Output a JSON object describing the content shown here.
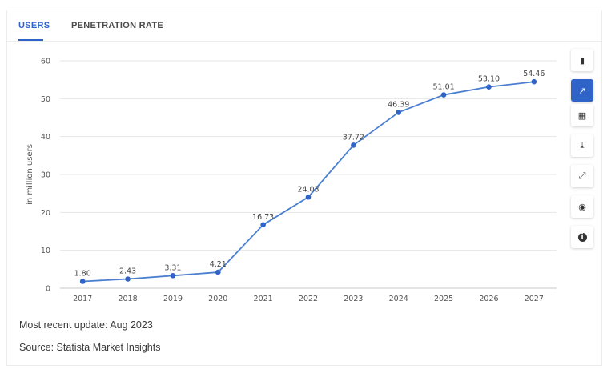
{
  "tabs": [
    {
      "label": "USERS",
      "active": true
    },
    {
      "label": "PENETRATION RATE",
      "active": false
    }
  ],
  "footer": {
    "update": "Most recent update: Aug 2023",
    "source": "Source: Statista Market Insights"
  },
  "toolbar": [
    {
      "name": "bar-chart-icon",
      "glyph": "▮",
      "active": false
    },
    {
      "name": "line-chart-icon",
      "glyph": "↗",
      "active": true
    },
    {
      "name": "table-icon",
      "glyph": "▦",
      "active": false
    },
    {
      "name": "download-icon",
      "glyph": "⤓",
      "active": false
    },
    {
      "name": "fullscreen-icon",
      "glyph": "⤢",
      "active": false
    },
    {
      "name": "hide-icon",
      "glyph": "◉",
      "active": false
    },
    {
      "name": "info-icon",
      "glyph": "i",
      "active": false
    }
  ],
  "colors": {
    "line": "#4a7fd0",
    "accent": "#2f63c7",
    "grid": "#e6e6e6"
  },
  "chart_data": {
    "type": "line",
    "title": "",
    "xlabel": "",
    "ylabel": "in million users",
    "ylim": [
      0,
      60
    ],
    "yticks": [
      0,
      10,
      20,
      30,
      40,
      50,
      60
    ],
    "grid": true,
    "categories": [
      "2017",
      "2018",
      "2019",
      "2020",
      "2021",
      "2022",
      "2023",
      "2024",
      "2025",
      "2026",
      "2027"
    ],
    "series": [
      {
        "values": [
          1.8,
          2.43,
          3.31,
          4.21,
          16.73,
          24.03,
          37.72,
          46.39,
          51.01,
          53.1,
          54.46
        ],
        "labels": [
          "1.80",
          "2.43",
          "3.31",
          "4.21",
          "16.73",
          "24.03",
          "37.72",
          "46.39",
          "51.01",
          "53.10",
          "54.46"
        ]
      }
    ]
  }
}
